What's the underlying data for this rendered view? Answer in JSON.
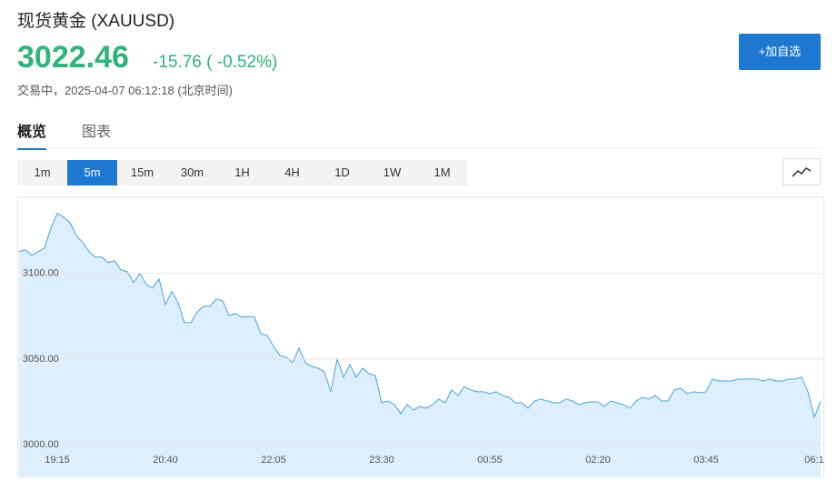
{
  "header": {
    "title": "现货黄金  (XAUUSD)",
    "price": "3022.46",
    "change": "-15.76 ( -0.52%)",
    "status": "交易中，2025-04-07 06:12:18 (北京时间)",
    "button": "+加自选"
  },
  "tabs": [
    "概览",
    "图表"
  ],
  "periods": [
    "1m",
    "5m",
    "15m",
    "30m",
    "1H",
    "4H",
    "1D",
    "1W",
    "1M"
  ],
  "chart_data": {
    "type": "area",
    "color": "#4aa3df",
    "fill": "#ddeefc",
    "grid": true,
    "ylim": [
      2983,
      3144
    ],
    "yticks": [
      {
        "value": 3000,
        "label": "3000.00"
      },
      {
        "value": 3050,
        "label": "3050.00"
      },
      {
        "value": 3100,
        "label": "3100.00"
      }
    ],
    "categories": [
      null,
      null,
      null,
      null,
      null,
      null,
      "19:15",
      null,
      null,
      null,
      null,
      null,
      null,
      null,
      null,
      null,
      null,
      null,
      null,
      null,
      null,
      null,
      null,
      "20:40",
      null,
      null,
      null,
      null,
      null,
      null,
      null,
      null,
      null,
      null,
      null,
      null,
      null,
      null,
      null,
      null,
      "22:05",
      null,
      null,
      null,
      null,
      null,
      null,
      null,
      null,
      null,
      null,
      null,
      null,
      null,
      null,
      null,
      null,
      "23:30",
      null,
      null,
      null,
      null,
      null,
      null,
      null,
      null,
      null,
      null,
      null,
      null,
      null,
      null,
      null,
      null,
      "00:55",
      null,
      null,
      null,
      null,
      null,
      null,
      null,
      null,
      null,
      null,
      null,
      null,
      null,
      null,
      null,
      null,
      "02:20",
      null,
      null,
      null,
      null,
      null,
      null,
      null,
      null,
      null,
      null,
      null,
      null,
      null,
      null,
      null,
      null,
      "03:45",
      null,
      null,
      null,
      null,
      null,
      null,
      null,
      null,
      null,
      null,
      null,
      null,
      null,
      null,
      null,
      null,
      "06:1",
      null
    ],
    "values": [
      3112.8,
      3113.8,
      3110.6,
      3112.8,
      3114.9,
      3126.6,
      3135.1,
      3133.0,
      3129.8,
      3122.3,
      3118.1,
      3112.8,
      3109.6,
      3109.6,
      3106.4,
      3107.4,
      3102.1,
      3101.1,
      3094.7,
      3100.0,
      3093.6,
      3091.5,
      3096.8,
      3081.9,
      3089.4,
      3083.0,
      3071.3,
      3071.3,
      3077.7,
      3080.9,
      3080.9,
      3085.1,
      3084.0,
      3075.5,
      3076.6,
      3074.5,
      3075.0,
      3074.5,
      3064.9,
      3063.8,
      3057.4,
      3052.1,
      3051.1,
      3047.9,
      3056.4,
      3047.9,
      3045.7,
      3044.7,
      3042.6,
      3030.9,
      3050.0,
      3039.4,
      3046.8,
      3039.4,
      3044.7,
      3041.5,
      3040.4,
      3024.5,
      3025.5,
      3023.4,
      3018.1,
      3023.4,
      3020.2,
      3022.3,
      3021.3,
      3023.4,
      3026.6,
      3024.5,
      3031.9,
      3028.7,
      3034.0,
      3031.9,
      3030.9,
      3030.9,
      3029.8,
      3030.9,
      3028.7,
      3027.7,
      3024.5,
      3024.5,
      3021.3,
      3025.5,
      3026.6,
      3025.5,
      3024.5,
      3024.5,
      3026.6,
      3025.5,
      3023.4,
      3024.5,
      3025.0,
      3025.0,
      3022.3,
      3025.5,
      3024.5,
      3023.4,
      3021.3,
      3025.5,
      3027.7,
      3026.6,
      3028.7,
      3025.5,
      3025.5,
      3031.9,
      3033.0,
      3029.8,
      3030.9,
      3030.3,
      3030.9,
      3038.3,
      3037.2,
      3037.2,
      3037.2,
      3038.3,
      3038.3,
      3038.3,
      3038.3,
      3037.2,
      3038.3,
      3037.2,
      3037.2,
      3038.3,
      3038.3,
      3039.4,
      3030.9,
      3016.0,
      3025.5
    ]
  }
}
